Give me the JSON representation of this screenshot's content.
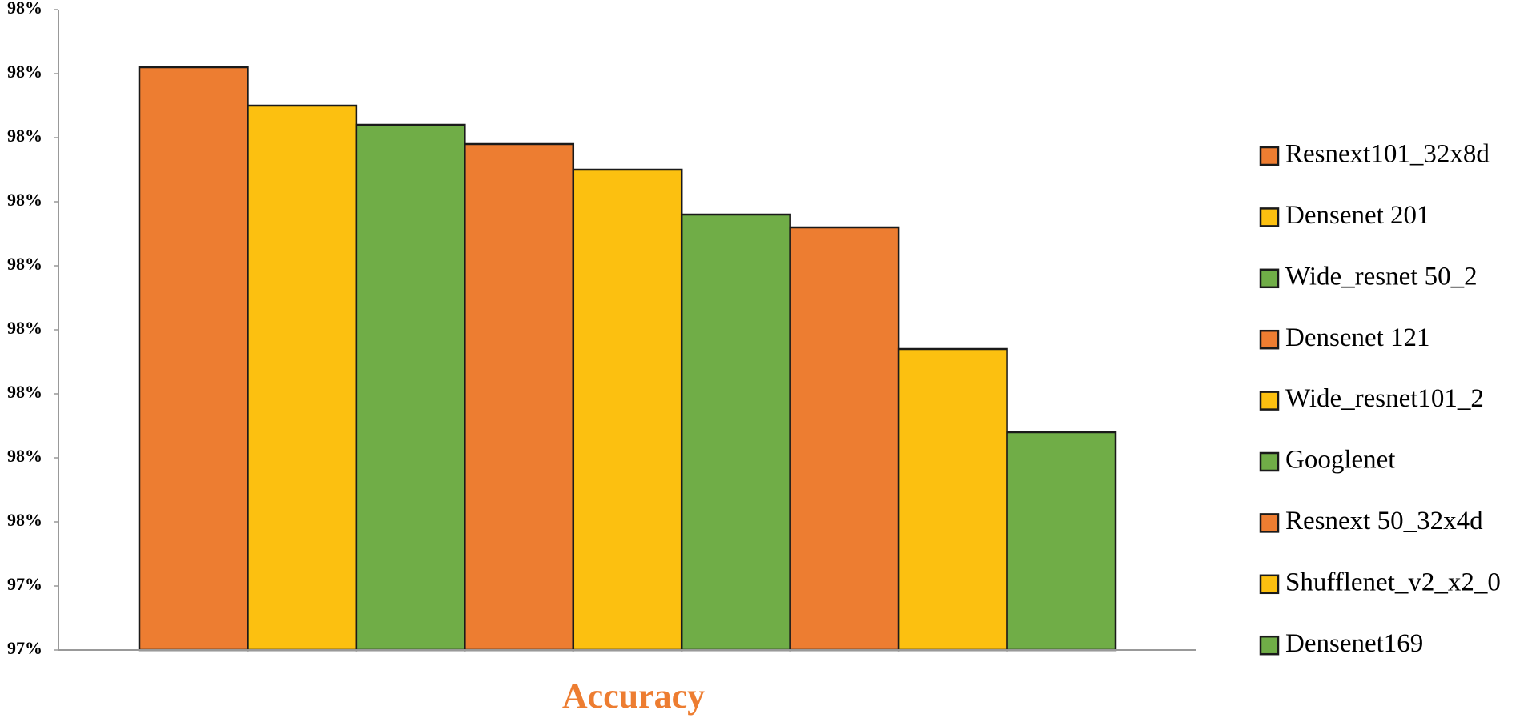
{
  "chart_data": {
    "type": "bar",
    "categories": [
      "Accuracy"
    ],
    "series": [
      {
        "name": "Resnext101_32x8d",
        "color": "#ed7d31",
        "values": [
          97.855
        ]
      },
      {
        "name": "Densenet 201",
        "color": "#fcc010",
        "values": [
          97.825
        ]
      },
      {
        "name": "Wide_resnet 50_2",
        "color": "#70ad47",
        "values": [
          97.81
        ]
      },
      {
        "name": "Densenet 121",
        "color": "#ed7d31",
        "values": [
          97.795
        ]
      },
      {
        "name": "Wide_resnet101_2",
        "color": "#fcc010",
        "values": [
          97.775
        ]
      },
      {
        "name": "Googlenet",
        "color": "#70ad47",
        "values": [
          97.74
        ]
      },
      {
        "name": "Resnext 50_32x4d",
        "color": "#ed7d31",
        "values": [
          97.73
        ]
      },
      {
        "name": "Shufflenet_v2_x2_0",
        "color": "#fcc010",
        "values": [
          97.635
        ]
      },
      {
        "name": "Densenet169",
        "color": "#70ad47",
        "values": [
          97.57
        ]
      }
    ],
    "ylim": [
      97.4,
      97.9
    ],
    "yticks": [
      {
        "value": 97.4,
        "label": "97%"
      },
      {
        "value": 97.45,
        "label": "97%"
      },
      {
        "value": 97.5,
        "label": "98%"
      },
      {
        "value": 97.55,
        "label": "98%"
      },
      {
        "value": 97.6,
        "label": "98%"
      },
      {
        "value": 97.65,
        "label": "98%"
      },
      {
        "value": 97.7,
        "label": "98%"
      },
      {
        "value": 97.75,
        "label": "98%"
      },
      {
        "value": 97.8,
        "label": "98%"
      },
      {
        "value": 97.85,
        "label": "98%"
      },
      {
        "value": 97.9,
        "label": "98%"
      }
    ],
    "legend": "right"
  }
}
